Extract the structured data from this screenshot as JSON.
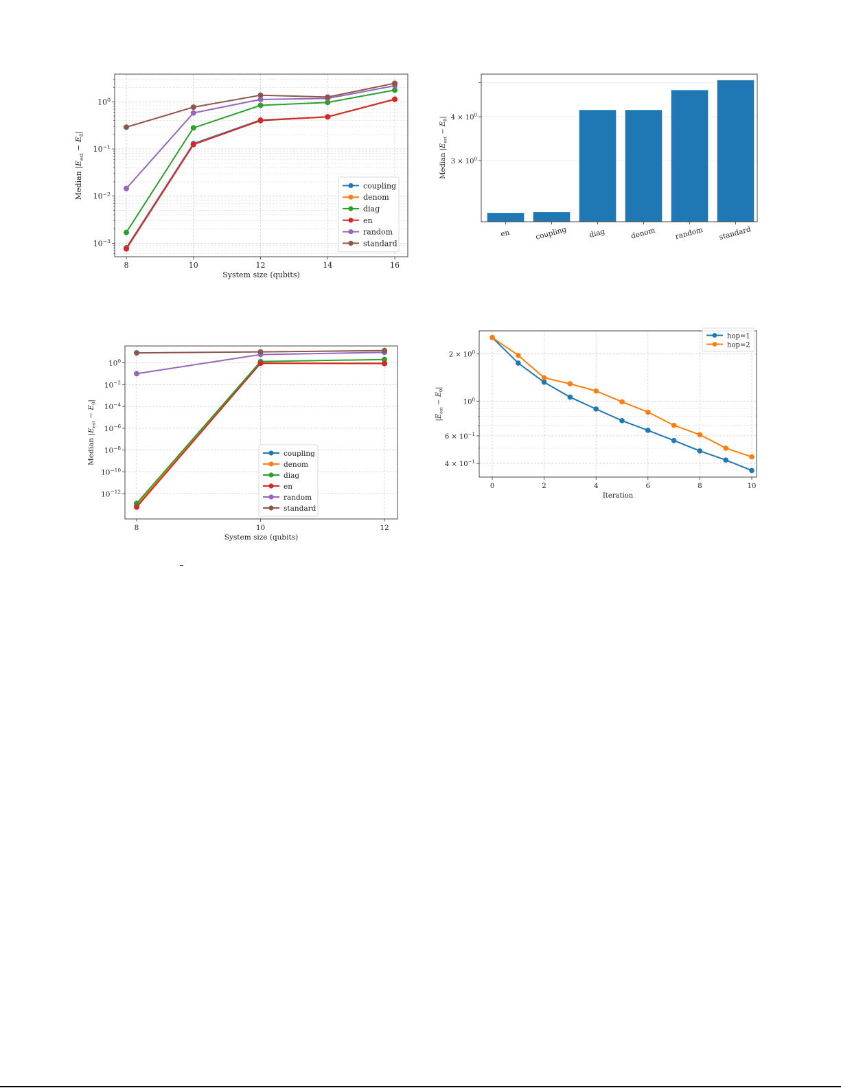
{
  "chart_data": [
    {
      "id": "top-left",
      "type": "line",
      "title": "",
      "xlabel": "System size (qubits)",
      "ylabel": "Median |E_est − E_0|",
      "yscale": "log",
      "x": [
        8,
        10,
        12,
        14,
        16
      ],
      "xticks": [
        "8",
        "10",
        "12",
        "14",
        "16"
      ],
      "yticks": [
        "10^0",
        "10^-1",
        "10^-2",
        "10^-3"
      ],
      "grid": true,
      "legend_position": "lower right",
      "series": [
        {
          "name": "coupling",
          "color": "#1f77b4",
          "values": [
            0.0008,
            0.13,
            0.41,
            0.48,
            1.13
          ]
        },
        {
          "name": "denom",
          "color": "#ff7f0e",
          "values": [
            0.00077,
            0.125,
            0.4,
            0.48,
            1.13
          ]
        },
        {
          "name": "diag",
          "color": "#2ca02c",
          "values": [
            0.0017,
            0.28,
            0.84,
            0.97,
            1.77
          ]
        },
        {
          "name": "en",
          "color": "#d62728",
          "values": [
            0.00076,
            0.124,
            0.4,
            0.48,
            1.13
          ]
        },
        {
          "name": "random",
          "color": "#9467bd",
          "values": [
            0.0145,
            0.58,
            1.12,
            1.18,
            2.19
          ]
        },
        {
          "name": "standard",
          "color": "#8c564b",
          "values": [
            0.29,
            0.77,
            1.38,
            1.26,
            2.47
          ]
        }
      ]
    },
    {
      "id": "top-right",
      "type": "bar",
      "title": "",
      "xlabel": "",
      "ylabel": "Median |E_est − E_0|",
      "yscale": "log",
      "categories": [
        "en",
        "coupling",
        "diag",
        "denom",
        "random",
        "standard"
      ],
      "values": [
        2.13,
        2.14,
        4.18,
        4.18,
        4.76,
        5.08
      ],
      "yticks": [
        "3 × 10^0",
        "4 × 10^0"
      ],
      "color": "#1f77b4",
      "grid": true
    },
    {
      "id": "bottom-left",
      "type": "line",
      "title": "",
      "xlabel": "System size (qubits)",
      "ylabel": "Median |E_est − E_0|",
      "yscale": "log",
      "x": [
        8,
        10,
        12
      ],
      "xticks": [
        "8",
        "10",
        "12"
      ],
      "yticks": [
        "10^0",
        "10^-2",
        "10^-4",
        "10^-6",
        "10^-8",
        "10^-10",
        "10^-12"
      ],
      "grid": true,
      "legend_position": "lower right",
      "series": [
        {
          "name": "coupling",
          "color": "#1f77b4",
          "values": [
            8e-14,
            0.95,
            0.9
          ]
        },
        {
          "name": "denom",
          "color": "#ff7f0e",
          "values": [
            9e-14,
            0.95,
            0.9
          ]
        },
        {
          "name": "diag",
          "color": "#2ca02c",
          "values": [
            1.3e-13,
            1.3,
            2.0
          ]
        },
        {
          "name": "en",
          "color": "#d62728",
          "values": [
            6e-14,
            0.9,
            0.85
          ]
        },
        {
          "name": "random",
          "color": "#9467bd",
          "values": [
            0.1,
            5.7,
            9.0
          ]
        },
        {
          "name": "standard",
          "color": "#8c564b",
          "values": [
            8.0,
            10.0,
            13.0
          ]
        }
      ]
    },
    {
      "id": "bottom-right",
      "type": "line",
      "title": "",
      "xlabel": "Iteration",
      "ylabel": "|E_est − E_0|",
      "yscale": "log",
      "x": [
        0,
        1,
        2,
        3,
        4,
        5,
        6,
        7,
        8,
        9,
        10
      ],
      "xticks": [
        "0",
        "2",
        "4",
        "6",
        "8",
        "10"
      ],
      "yticks": [
        "2 × 10^0",
        "10^0",
        "6 × 10^-1",
        "4 × 10^-1"
      ],
      "grid": true,
      "legend_position": "upper right",
      "series": [
        {
          "name": "hop=1",
          "color": "#1f77b4",
          "values": [
            2.55,
            1.75,
            1.32,
            1.06,
            0.89,
            0.75,
            0.65,
            0.56,
            0.48,
            0.42,
            0.36
          ]
        },
        {
          "name": "hop=2",
          "color": "#ff7f0e",
          "values": [
            2.55,
            1.96,
            1.41,
            1.29,
            1.16,
            0.99,
            0.85,
            0.7,
            0.61,
            0.5,
            0.44
          ]
        }
      ]
    }
  ]
}
